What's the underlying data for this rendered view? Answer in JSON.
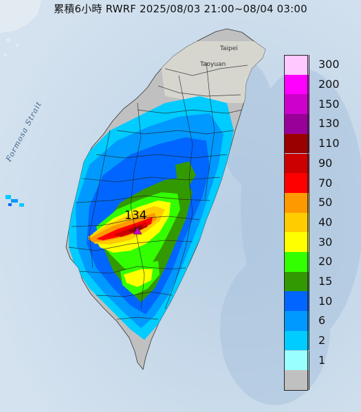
{
  "title": "累積6小時 RWRF 2025/08/03 21:00~08/04 03:00",
  "labels": {
    "strait": "Formosa Strait",
    "taipei": "Taipei",
    "taoyuan": "Taoyuan",
    "max_value": "134"
  },
  "legend": [
    {
      "label": "300",
      "color": "#ffc8ff"
    },
    {
      "label": "200",
      "color": "#ff00ff"
    },
    {
      "label": "150",
      "color": "#cc00cc"
    },
    {
      "label": "130",
      "color": "#990099"
    },
    {
      "label": "110",
      "color": "#990000"
    },
    {
      "label": "90",
      "color": "#cc0000"
    },
    {
      "label": "70",
      "color": "#ff0000"
    },
    {
      "label": "50",
      "color": "#ff9900"
    },
    {
      "label": "40",
      "color": "#ffcc00"
    },
    {
      "label": "30",
      "color": "#ffff00"
    },
    {
      "label": "20",
      "color": "#33ff00"
    },
    {
      "label": "15",
      "color": "#339900"
    },
    {
      "label": "10",
      "color": "#0066ff"
    },
    {
      "label": "6",
      "color": "#0099ff"
    },
    {
      "label": "2",
      "color": "#00ccff"
    },
    {
      "label": "1",
      "color": "#99ffff"
    },
    {
      "label": "",
      "color": "#c0c0c0"
    }
  ]
}
